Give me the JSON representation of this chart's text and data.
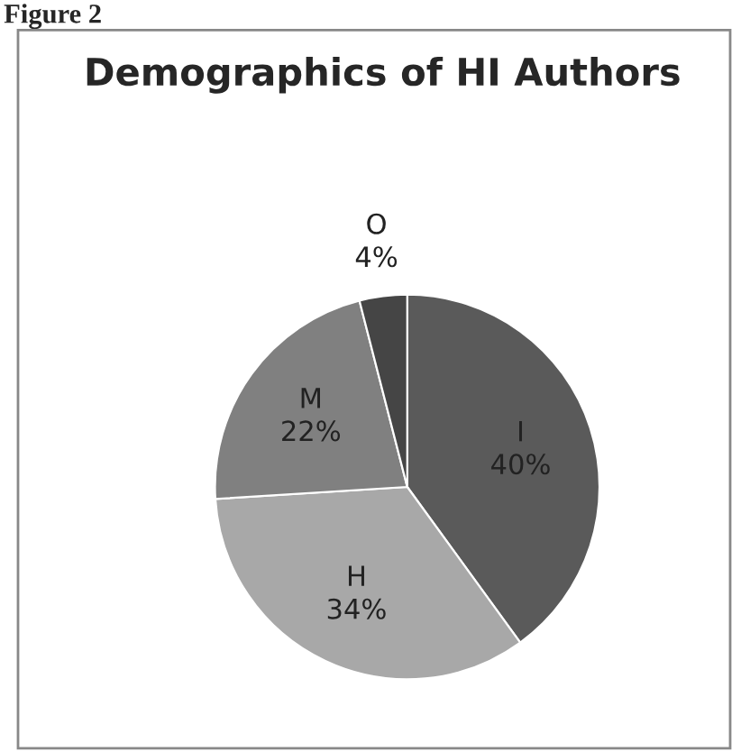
{
  "chart_data": {
    "type": "pie",
    "title": "Demographics of HI Authors",
    "categories": [
      "I",
      "H",
      "M",
      "O"
    ],
    "values": [
      40,
      34,
      22,
      4
    ],
    "value_labels": [
      "40%",
      "34%",
      "22%",
      "4%"
    ],
    "colors": [
      "#5a5a5a",
      "#a8a8a8",
      "#808080",
      "#454545"
    ],
    "annotations": [
      "Figure 2"
    ]
  }
}
